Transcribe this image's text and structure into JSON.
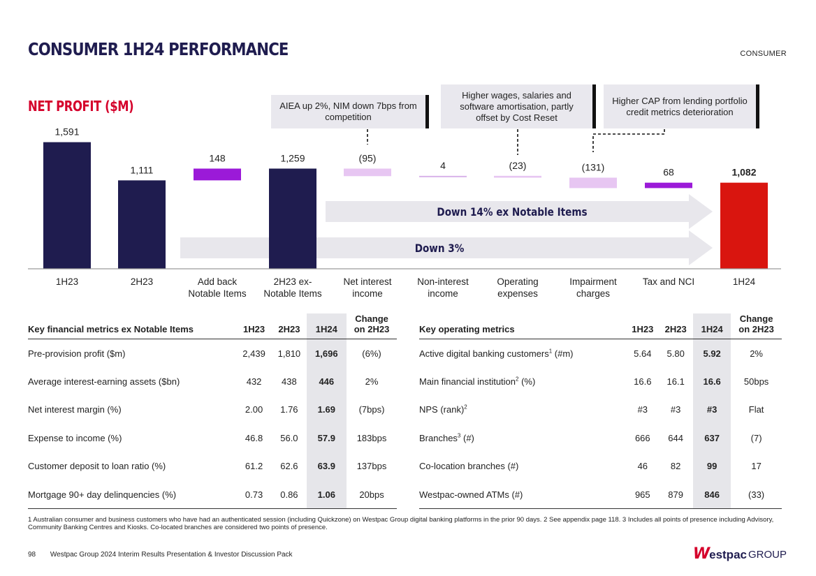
{
  "header": {
    "title": "CONSUMER 1H24 PERFORMANCE",
    "section_tag": "CONSUMER"
  },
  "colors": {
    "navy": "#1f1c4f",
    "red": "#d5002b",
    "bar_red": "#d9150f",
    "purple": "#9b1ad8",
    "lilac": "#e7c6f2",
    "arrow_grey": "#e8e7ec"
  },
  "callouts": [
    {
      "text": "AIEA up 2%, NIM down 7bps from competition"
    },
    {
      "text": "Higher wages, salaries and software amortisation, partly offset by Cost Reset"
    },
    {
      "text": "Higher CAP from lending portfolio credit metrics deterioration"
    }
  ],
  "chart_data": {
    "type": "bar",
    "subtype": "waterfall",
    "title": "NET PROFIT ($M)",
    "categories": [
      "1H23",
      "2H23",
      "Add back Notable Items",
      "2H23 ex-Notable Items",
      "Net interest income",
      "Non-interest income",
      "Operating expenses",
      "Impairment charges",
      "Tax and NCI",
      "1H24"
    ],
    "category_lines": [
      [
        "1H23"
      ],
      [
        "2H23"
      ],
      [
        "Add back",
        "Notable Items"
      ],
      [
        "2H23 ex-",
        "Notable Items"
      ],
      [
        "Net interest",
        "income"
      ],
      [
        "Non-interest",
        "income"
      ],
      [
        "Operating",
        "expenses"
      ],
      [
        "Impairment",
        "charges"
      ],
      [
        "Tax and NCI"
      ],
      [
        "1H24"
      ]
    ],
    "values": [
      1591,
      1111,
      148,
      1259,
      -95,
      4,
      -23,
      -131,
      68,
      1082
    ],
    "value_labels": [
      "1,591",
      "1,111",
      "148",
      "1,259",
      "(95)",
      "4",
      "(23)",
      "(131)",
      "68",
      "1,082"
    ],
    "kinds": [
      "total",
      "total",
      "increase",
      "total",
      "decrease",
      "decrease-small",
      "decrease",
      "decrease",
      "increase",
      "final"
    ],
    "annotations": [
      "Down 14% ex Notable Items",
      "Down 3%"
    ]
  },
  "financial_table": {
    "headers": [
      "Key financial metrics ex Notable Items",
      "1H23",
      "2H23",
      "1H24",
      "Change on 2H23"
    ],
    "rows": [
      [
        "Pre-provision profit ($m)",
        "2,439",
        "1,810",
        "1,696",
        "(6%)"
      ],
      [
        "Average interest-earning assets ($bn)",
        "432",
        "438",
        "446",
        "2%"
      ],
      [
        "Net interest margin (%)",
        "2.00",
        "1.76",
        "1.69",
        "(7bps)"
      ],
      [
        "Expense to income (%)",
        "46.8",
        "56.0",
        "57.9",
        "183bps"
      ],
      [
        "Customer deposit to loan ratio (%)",
        "61.2",
        "62.6",
        "63.9",
        "137bps"
      ],
      [
        "Mortgage 90+ day delinquencies (%)",
        "0.73",
        "0.86",
        "1.06",
        "20bps"
      ]
    ]
  },
  "operating_table": {
    "headers": [
      "Key operating metrics",
      "1H23",
      "2H23",
      "1H24",
      "Change on 2H23"
    ],
    "rows": [
      {
        "label": "Active digital banking customers",
        "sup": "1",
        "suffix": " (#m)",
        "v1": "5.64",
        "v2": "5.80",
        "v3": "5.92",
        "chg": "2%"
      },
      {
        "label": "Main financial institution",
        "sup": "2",
        "suffix": " (%)",
        "v1": "16.6",
        "v2": "16.1",
        "v3": "16.6",
        "chg": "50bps"
      },
      {
        "label": "NPS (rank)",
        "sup": "2",
        "suffix": "",
        "v1": "#3",
        "v2": "#3",
        "v3": "#3",
        "chg": "Flat"
      },
      {
        "label": "Branches",
        "sup": "3",
        "suffix": " (#)",
        "v1": "666",
        "v2": "644",
        "v3": "637",
        "chg": "(7)"
      },
      {
        "label": "Co-location branches (#)",
        "sup": "",
        "suffix": "",
        "v1": "46",
        "v2": "82",
        "v3": "99",
        "chg": "17"
      },
      {
        "label": "Westpac-owned ATMs (#)",
        "sup": "",
        "suffix": "",
        "v1": "965",
        "v2": "879",
        "v3": "846",
        "chg": "(33)"
      }
    ]
  },
  "footnote": "1 Australian consumer and business customers who have had an authenticated session (including Quickzone) on Westpac Group digital banking platforms in the prior 90 days. 2 See appendix page 118. 3 Includes all points of presence including Advisory, Community Banking Centres and Kiosks. Co-located branches are considered two points of presence.",
  "footer": {
    "page": "98",
    "text": "Westpac Group 2024 Interim Results Presentation & Investor Discussion Pack",
    "logo_mark": "W",
    "logo_name": "estpac",
    "logo_group": "GROUP"
  }
}
